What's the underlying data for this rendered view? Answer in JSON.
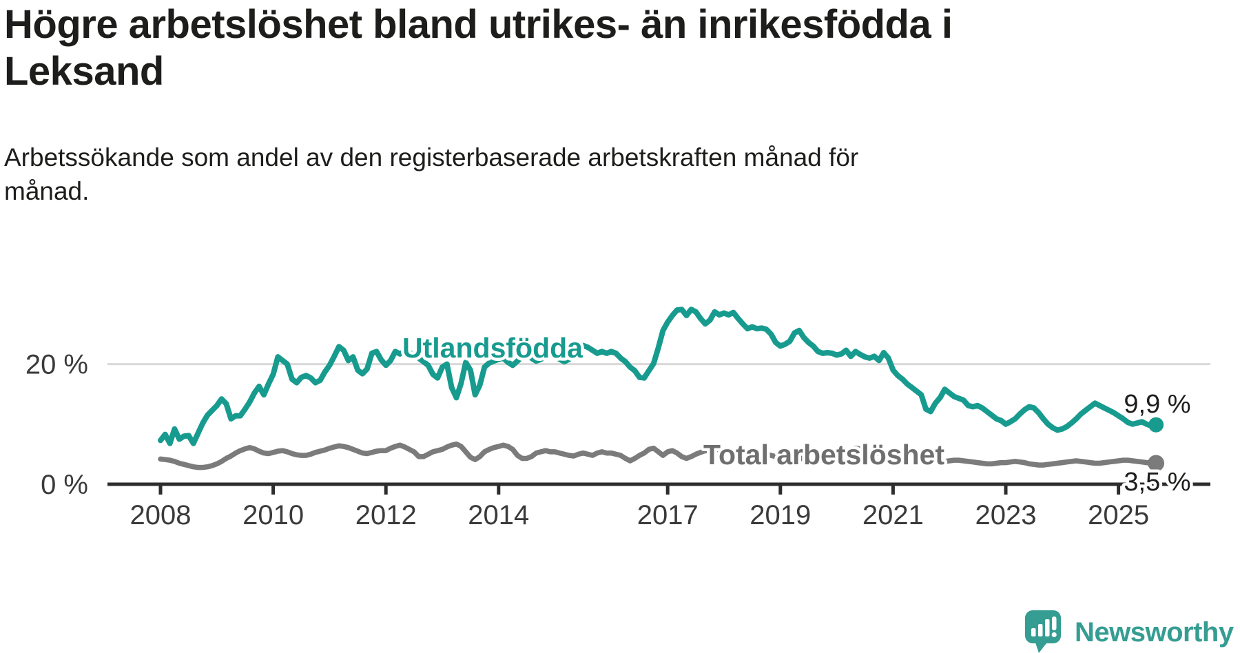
{
  "title_lines": [
    "Högre arbetslöshet bland utrikes- än inrikesfödda i",
    "Leksand"
  ],
  "subtitle_lines": [
    "Arbetssökande som andel av den registerbaserade arbetskraften månad för",
    "månad."
  ],
  "colors": {
    "foreign_line": "#189b8f",
    "total_line": "#7b7b7b",
    "total_label": "#6f6f6f",
    "axis": "#2d2d2d",
    "grid": "#d9d9d9",
    "text": "#1d1d1b",
    "tick_text": "#3a3a3a",
    "logo": "#359d92"
  },
  "chart_data": {
    "type": "line",
    "title": "Högre arbetslöshet bland utrikes- än inrikesfödda i Leksand",
    "subtitle": "Arbetssökande som andel av den registerbaserade arbetskraften månad för månad.",
    "x_unit": "month",
    "x_start": "2008-01",
    "x_end": "2025-09",
    "x_tick_years": [
      "2008",
      "2010",
      "2012",
      "2014",
      "2017",
      "2019",
      "2021",
      "2023",
      "2025"
    ],
    "y_ticks": [
      {
        "value": 0,
        "label": "0 %"
      },
      {
        "value": 20,
        "label": "20 %"
      }
    ],
    "ylim": [
      0,
      31
    ],
    "grid": "y-only",
    "legend_position": "inline-labels",
    "series": [
      {
        "name": "Utlandsfödda",
        "color": "#189b8f",
        "end_label": "9,9 %",
        "last_value": 9.9,
        "values": [
          7.3,
          8.3,
          6.8,
          9.2,
          7.5,
          8.0,
          8.1,
          6.8,
          8.5,
          10.2,
          11.5,
          12.3,
          13.1,
          14.2,
          13.4,
          10.9,
          11.4,
          11.4,
          12.5,
          13.7,
          15.2,
          16.3,
          14.9,
          16.7,
          18.3,
          21.2,
          20.6,
          20.0,
          17.5,
          16.9,
          17.8,
          18.1,
          17.7,
          16.9,
          17.3,
          18.7,
          19.8,
          21.3,
          22.9,
          22.3,
          20.6,
          21.2,
          19.0,
          18.4,
          19.2,
          21.8,
          22.1,
          20.7,
          19.8,
          20.6,
          22.1,
          21.7,
          22.1,
          21.9,
          21.5,
          21.0,
          20.4,
          19.8,
          18.3,
          17.7,
          19.5,
          20.0,
          16.1,
          14.4,
          16.8,
          20.3,
          19.0,
          14.9,
          16.5,
          19.5,
          20.2,
          20.5,
          20.8,
          21.0,
          20.3,
          19.8,
          20.5,
          21.2,
          21.5,
          21.0,
          20.5,
          20.8,
          21.2,
          21.5,
          21.3,
          20.8,
          20.4,
          20.8,
          21.5,
          22.3,
          23.1,
          22.8,
          22.3,
          21.8,
          22.1,
          21.8,
          22.1,
          21.8,
          21.0,
          20.4,
          19.5,
          18.9,
          17.8,
          17.7,
          18.9,
          20.1,
          22.7,
          25.6,
          27.0,
          28.1,
          29.0,
          29.1,
          28.1,
          29.1,
          28.7,
          27.6,
          26.7,
          27.3,
          28.7,
          28.2,
          28.5,
          28.2,
          28.6,
          27.6,
          26.7,
          25.9,
          26.2,
          25.9,
          26.0,
          25.8,
          25.0,
          23.6,
          23.0,
          23.3,
          23.8,
          25.2,
          25.6,
          24.4,
          23.6,
          23.0,
          22.1,
          21.8,
          21.9,
          21.8,
          21.5,
          21.7,
          22.3,
          21.3,
          22.1,
          21.6,
          21.2,
          21.0,
          21.3,
          20.6,
          21.9,
          21.0,
          19.0,
          18.1,
          17.5,
          16.7,
          16.1,
          15.5,
          14.9,
          12.5,
          12.1,
          13.5,
          14.4,
          15.8,
          15.2,
          14.6,
          14.3,
          14.0,
          13.1,
          12.9,
          13.1,
          12.7,
          12.1,
          11.5,
          10.9,
          10.6,
          10.0,
          10.4,
          10.9,
          11.7,
          12.4,
          12.9,
          12.7,
          11.9,
          10.9,
          10.0,
          9.4,
          9.0,
          9.2,
          9.6,
          10.2,
          10.9,
          11.7,
          12.3,
          12.9,
          13.5,
          13.1,
          12.7,
          12.3,
          11.9,
          11.4,
          10.9,
          10.3,
          10.0,
          10.2,
          10.4,
          10.0,
          9.7,
          9.9
        ]
      },
      {
        "name": "Total arbetslöshet",
        "color": "#7b7b7b",
        "end_label": "3,5 %",
        "last_value": 3.5,
        "values": [
          4.2,
          4.1,
          4.0,
          3.8,
          3.5,
          3.3,
          3.1,
          2.9,
          2.8,
          2.8,
          2.9,
          3.1,
          3.4,
          3.8,
          4.3,
          4.7,
          5.2,
          5.6,
          5.9,
          6.1,
          5.9,
          5.5,
          5.2,
          5.1,
          5.3,
          5.5,
          5.6,
          5.4,
          5.1,
          4.9,
          4.8,
          4.8,
          5.0,
          5.3,
          5.5,
          5.7,
          6.0,
          6.2,
          6.4,
          6.3,
          6.1,
          5.8,
          5.5,
          5.2,
          5.1,
          5.3,
          5.5,
          5.6,
          5.6,
          6.0,
          6.3,
          6.5,
          6.2,
          5.8,
          5.4,
          4.6,
          4.6,
          5.0,
          5.4,
          5.6,
          5.8,
          6.2,
          6.5,
          6.7,
          6.3,
          5.4,
          4.5,
          4.1,
          4.6,
          5.4,
          5.8,
          6.1,
          6.3,
          6.5,
          6.3,
          5.8,
          4.8,
          4.3,
          4.3,
          4.6,
          5.2,
          5.4,
          5.6,
          5.4,
          5.4,
          5.2,
          5.0,
          4.8,
          4.7,
          5.0,
          5.2,
          5.0,
          4.8,
          5.2,
          5.4,
          5.2,
          5.2,
          5.0,
          4.8,
          4.3,
          3.9,
          4.3,
          4.8,
          5.2,
          5.8,
          6.0,
          5.4,
          4.8,
          5.4,
          5.6,
          5.2,
          4.6,
          4.3,
          4.6,
          5.0,
          5.3,
          5.6,
          5.5,
          5.2,
          5.0,
          5.2,
          5.4,
          5.1,
          4.7,
          4.4,
          4.2,
          4.4,
          4.7,
          4.9,
          5.0,
          4.8,
          4.6,
          4.5,
          4.7,
          4.9,
          4.7,
          4.4,
          4.2,
          4.1,
          4.3,
          4.5,
          4.6,
          4.4,
          4.3,
          4.4,
          4.6,
          5.2,
          5.8,
          6.0,
          5.9,
          5.7,
          5.5,
          5.3,
          5.1,
          4.9,
          4.8,
          4.8,
          4.7,
          4.6,
          4.5,
          4.4,
          4.2,
          4.1,
          4.0,
          3.9,
          3.9,
          3.8,
          3.8,
          3.9,
          4.0,
          4.0,
          3.9,
          3.8,
          3.7,
          3.6,
          3.5,
          3.4,
          3.4,
          3.5,
          3.6,
          3.6,
          3.7,
          3.8,
          3.7,
          3.6,
          3.4,
          3.3,
          3.2,
          3.2,
          3.3,
          3.4,
          3.5,
          3.6,
          3.7,
          3.8,
          3.9,
          3.8,
          3.7,
          3.6,
          3.5,
          3.5,
          3.6,
          3.7,
          3.8,
          3.9,
          4.0,
          4.0,
          3.9,
          3.8,
          3.7,
          3.6,
          3.5,
          3.5
        ]
      }
    ]
  },
  "logo": {
    "text": "Newsworthy"
  }
}
